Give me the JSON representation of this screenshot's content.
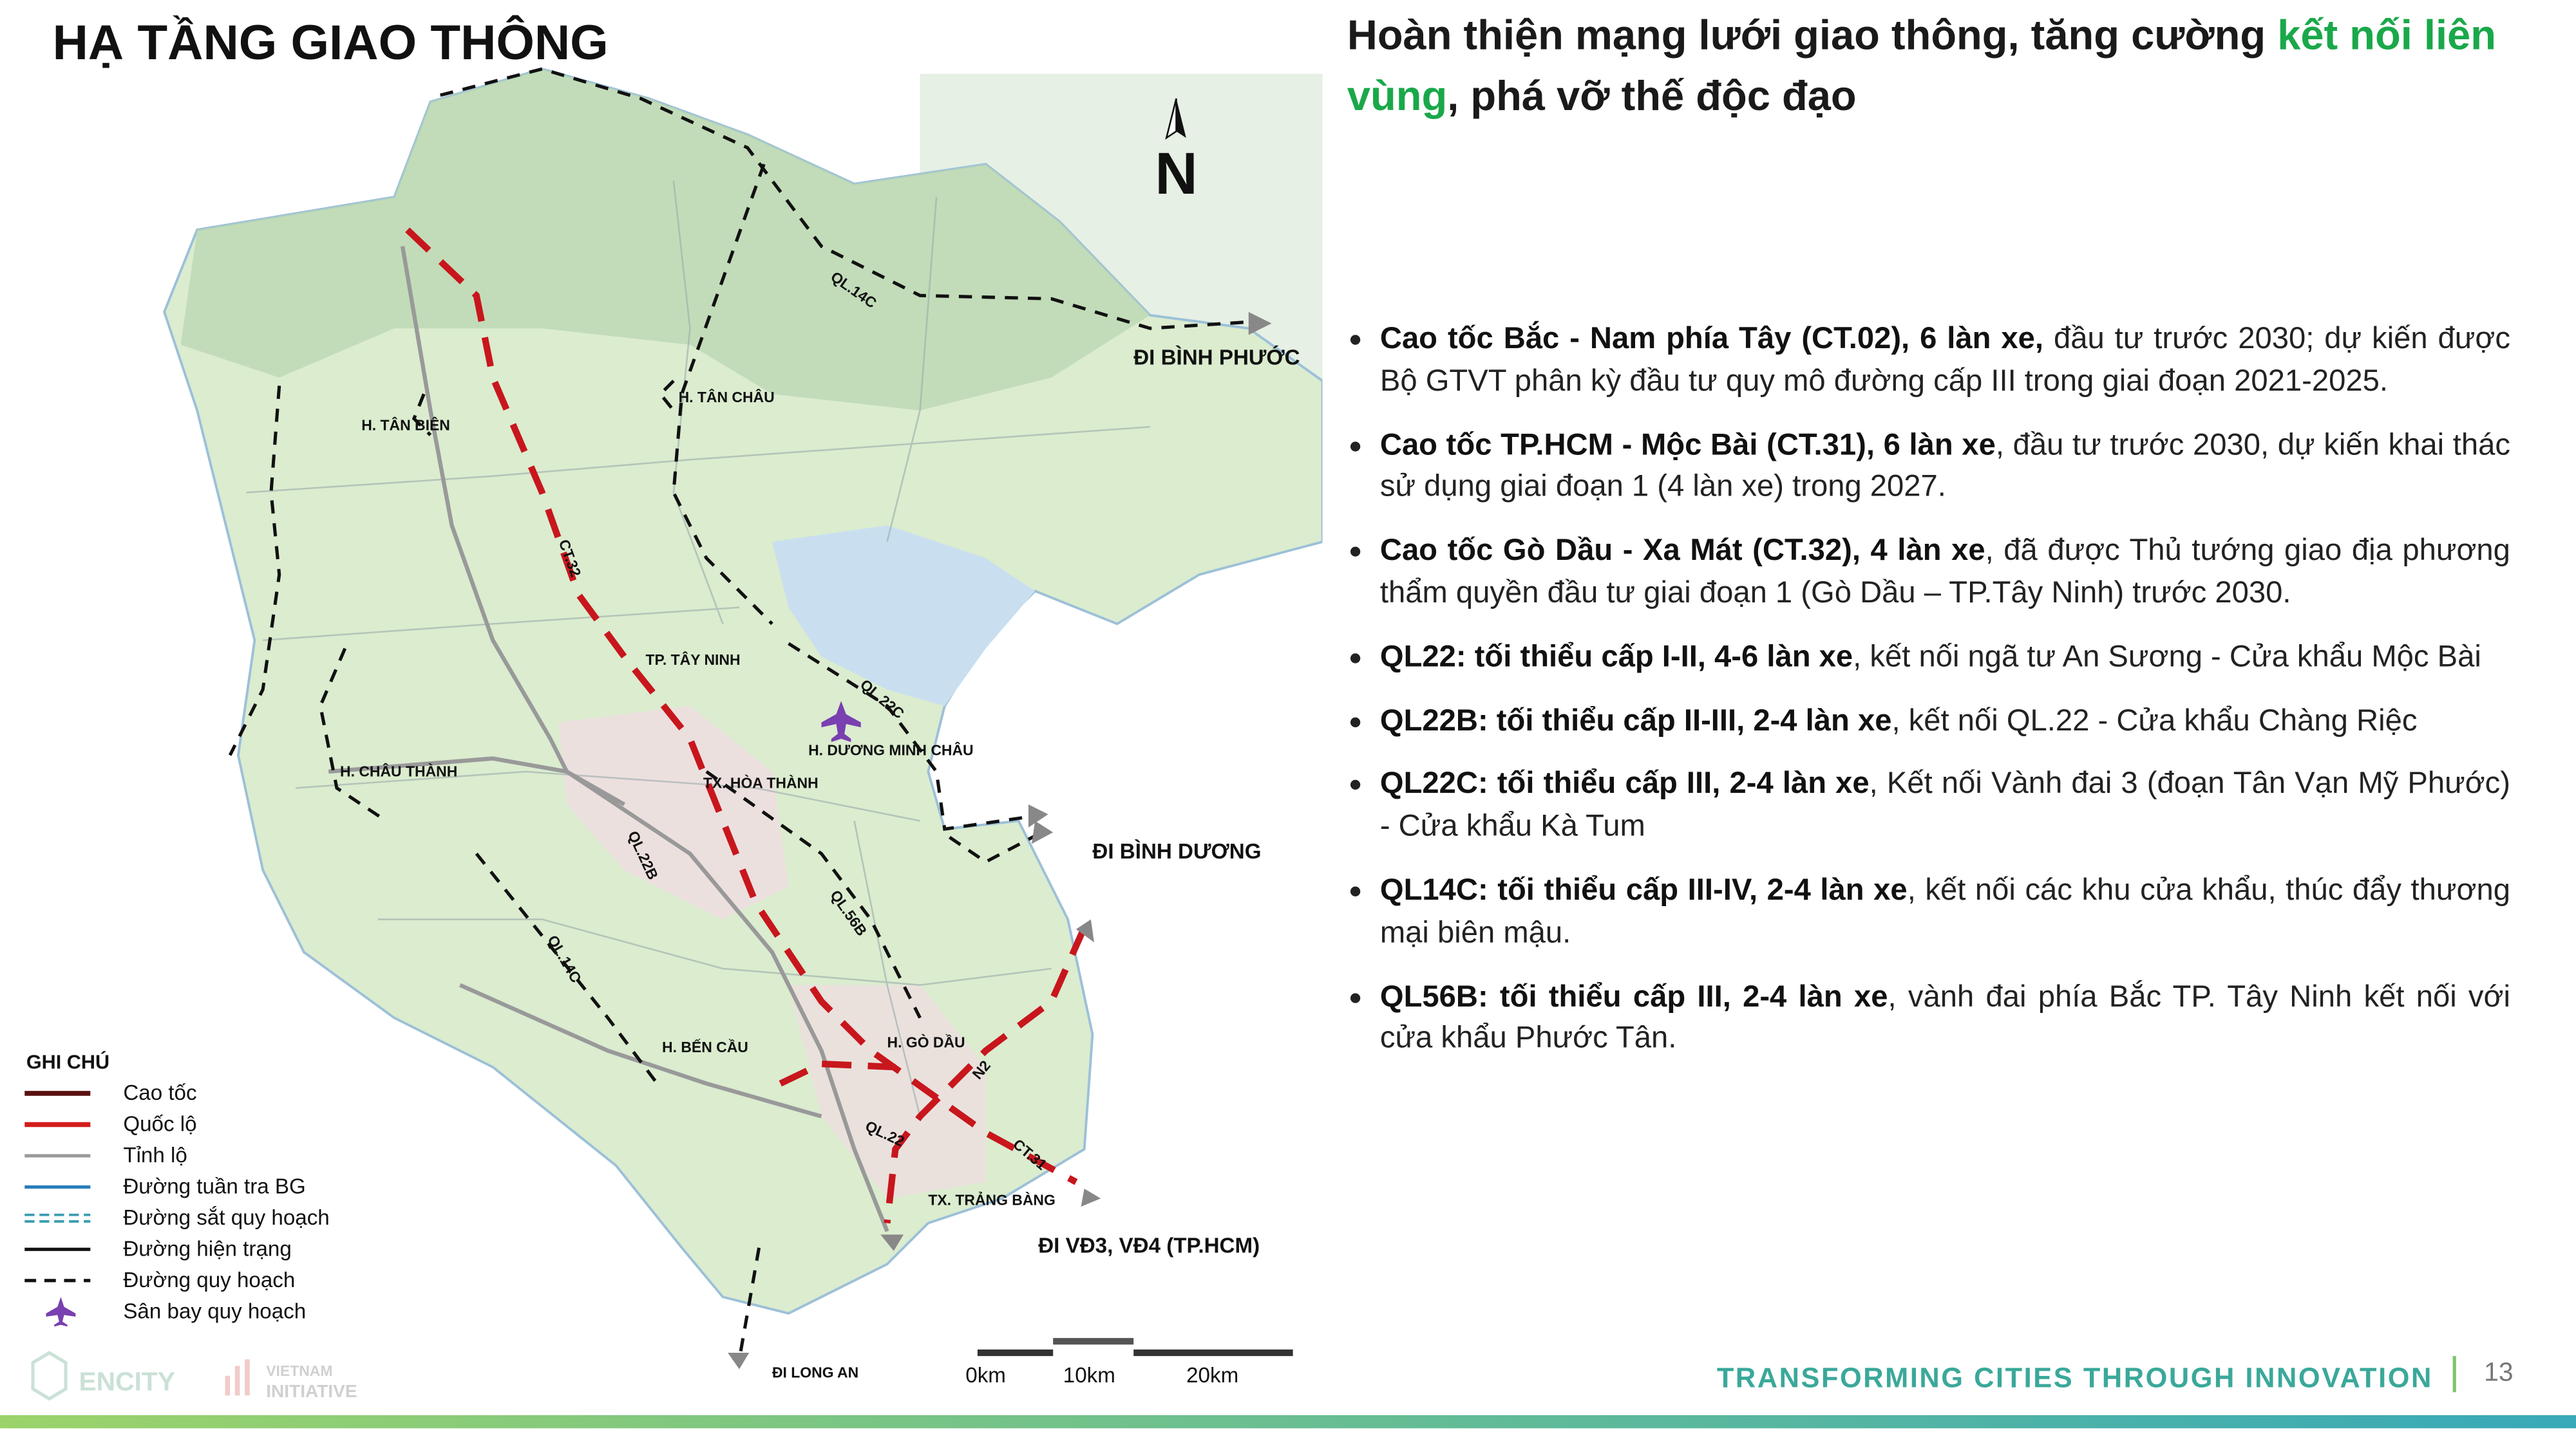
{
  "header": {
    "title": "HẠ TẦNG GIAO THÔNG"
  },
  "headline": {
    "lead": "Hoàn thiện mạng lưới giao thông, tăng cường",
    "highlight": "kết nối liên vùng",
    "tail": ", phá vỡ thế độc đạo"
  },
  "bullets": [
    {
      "bold": "Cao tốc Bắc - Nam phía Tây (CT.02), 6 làn xe,",
      "text": "đầu tư trước 2030; dự kiến được Bộ GTVT phân kỳ đầu tư quy mô đường cấp III trong giai đoạn 2021-2025."
    },
    {
      "bold": "Cao tốc TP.HCM - Mộc Bài (CT.31), 6 làn xe",
      "text": ", đầu tư trước 2030, dự kiến khai thác sử dụng giai đoạn 1 (4 làn xe) trong 2027."
    },
    {
      "bold": "Cao tốc Gò Dầu - Xa Mát (CT.32), 4 làn xe",
      "text": ", đã được Thủ tướng giao địa phương thẩm quyền đầu tư giai đoạn 1 (Gò Dầu – TP.Tây Ninh) trước 2030."
    },
    {
      "bold": "QL22: tối thiểu cấp I-II, 4-6 làn xe",
      "text": ", kết nối ngã tư An Sương - Cửa khẩu Mộc Bài"
    },
    {
      "bold": "QL22B: tối thiểu cấp II-III, 2-4 làn xe",
      "text": ", kết nối QL.22 - Cửa khẩu Chàng Riệc"
    },
    {
      "bold": "QL22C: tối thiểu cấp III, 2-4 làn xe",
      "text": ", Kết nối Vành đai 3 (đoạn Tân Vạn Mỹ Phước) - Cửa khẩu Kà Tum"
    },
    {
      "bold": "QL14C: tối thiểu cấp III-IV, 2-4 làn xe",
      "text": ", kết nối các khu cửa khẩu, thúc đẩy thương mại biên mậu."
    },
    {
      "bold": "QL56B: tối thiểu cấp III, 2-4 làn xe",
      "text": ", vành đai phía Bắc TP. Tây Ninh kết nối với cửa khẩu Phước Tân."
    }
  ],
  "map": {
    "north": "N",
    "labels": [
      "QL.14C",
      "ĐI BÌNH PHƯỚC",
      "H. TÂN CHÂU",
      "H. TÂN BIÊN",
      "CT.32",
      "TP. TÂY NINH",
      "QL.22C",
      "H. DƯƠNG MINH CHÂU",
      "H. CHÂU THÀNH",
      "TX. HÒA THÀNH",
      "ĐI BÌNH DƯƠNG",
      "QL.22B",
      "QL.56B",
      "QL.14C",
      "H. BẾN CẦU",
      "H. GÒ DẦU",
      "N2",
      "QL.22",
      "CT.31",
      "TX. TRẢNG BÀNG",
      "ĐI VĐ3, VĐ4 (TP.HCM)",
      "ĐI LONG AN"
    ],
    "legend": {
      "title": "GHI CHÚ",
      "items": [
        "Cao tốc",
        "Quốc lộ",
        "Tỉnh lộ",
        "Đường tuần tra BG",
        "Đường sắt quy hoạch",
        "Đường hiện trạng",
        "Đường quy hoạch",
        "Sân bay quy hoạch"
      ]
    },
    "scale": [
      "0km",
      "10km",
      "20km"
    ]
  },
  "footer": {
    "logo": "ENCITY",
    "partner": [
      "VIETNAM",
      "INITIATIVE"
    ],
    "tagline": "TRANSFORMING CITIES THROUGH INNOVATION",
    "page": "13"
  }
}
